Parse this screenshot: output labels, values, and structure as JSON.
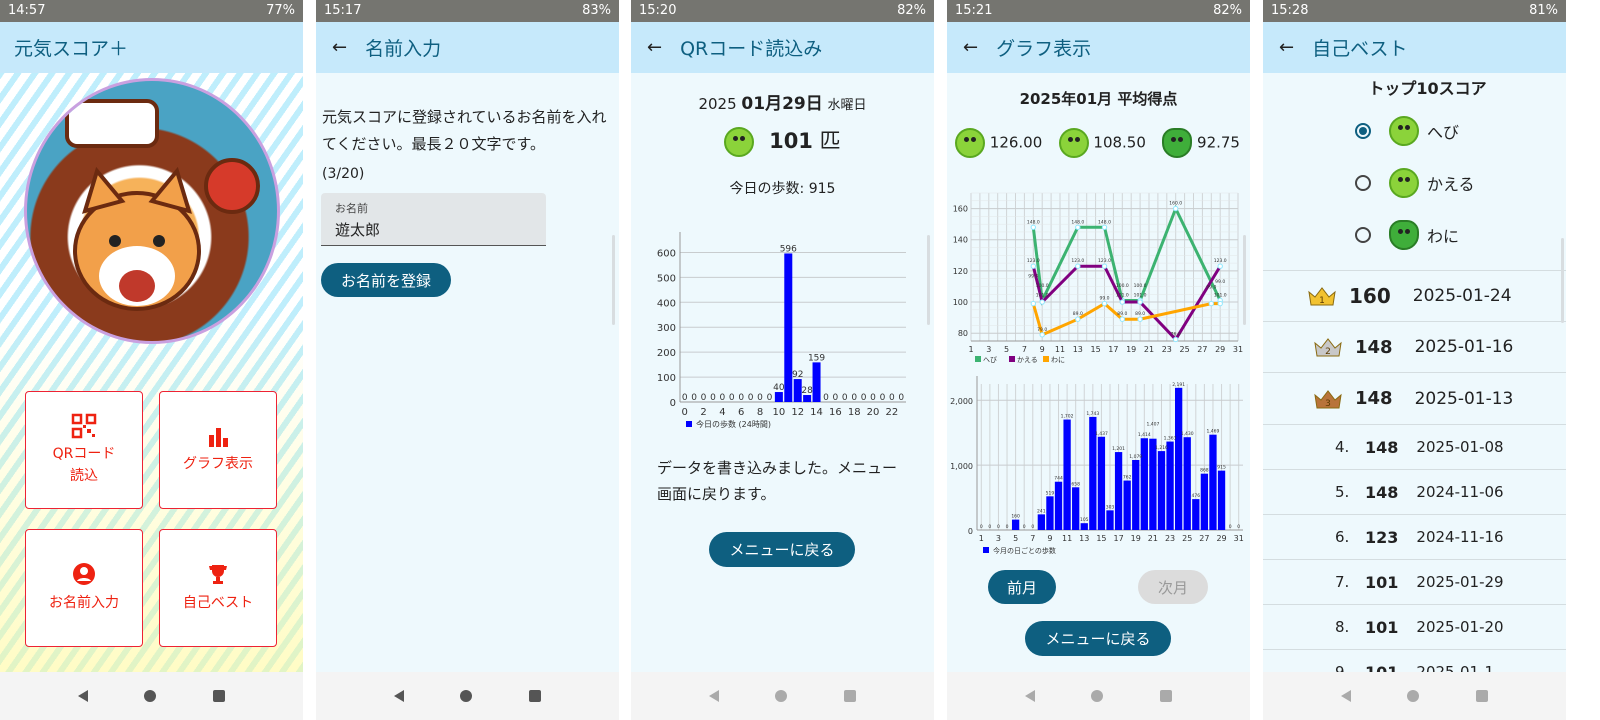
{
  "screens": [
    {
      "status": {
        "time": "14:57",
        "battery": "77%"
      },
      "title": "元気スコア＋",
      "menu": [
        {
          "label": "QRコード\n読込",
          "icon": "qr-code-icon"
        },
        {
          "label": "グラフ表示",
          "icon": "bar-chart-icon"
        },
        {
          "label": "お名前入力",
          "icon": "account-circle-icon"
        },
        {
          "label": "自己ベスト",
          "icon": "trophy-icon"
        }
      ]
    },
    {
      "status": {
        "time": "15:17",
        "battery": "83%"
      },
      "title": "名前入力",
      "instruction": "元気スコアに登録されているお名前を入れてください。最長２０文字です。",
      "counter": "(3/20)",
      "field_label": "お名前",
      "field_value": "遊太郎",
      "register_button": "お名前を登録"
    },
    {
      "status": {
        "time": "15:20",
        "battery": "82%"
      },
      "title": "QRコード読込み",
      "date_year": "2025",
      "date_md": "01月29日",
      "weekday": "水曜日",
      "count": "101",
      "count_unit": "匹",
      "steps_text": "今日の歩数: 915",
      "message": "データを書き込みました。メニュー画面に戻ります。",
      "menu_button": "メニューに戻る"
    },
    {
      "status": {
        "time": "15:21",
        "battery": "82%"
      },
      "title": "グラフ表示",
      "heading": "2025年01月 平均得点",
      "averages": [
        {
          "animal": "へび",
          "score": "126.00"
        },
        {
          "animal": "かえる",
          "score": "108.50"
        },
        {
          "animal": "わに",
          "score": "92.75"
        }
      ],
      "prev_button": "前月",
      "next_button": "次月",
      "menu_button": "メニューに戻る"
    },
    {
      "status": {
        "time": "15:28",
        "battery": "81%"
      },
      "title": "自己ベスト",
      "heading": "トップ10スコア",
      "options": [
        {
          "label": "へび",
          "selected": true
        },
        {
          "label": "かえる",
          "selected": false
        },
        {
          "label": "わに",
          "selected": false
        }
      ],
      "rankings": [
        {
          "rank": "1",
          "score": "160",
          "date": "2025-01-24"
        },
        {
          "rank": "2",
          "score": "148",
          "date": "2025-01-16"
        },
        {
          "rank": "3",
          "score": "148",
          "date": "2025-01-13"
        },
        {
          "rank": "4.",
          "score": "148",
          "date": "2025-01-08"
        },
        {
          "rank": "5.",
          "score": "148",
          "date": "2024-11-06"
        },
        {
          "rank": "6.",
          "score": "123",
          "date": "2024-11-16"
        },
        {
          "rank": "7.",
          "score": "101",
          "date": "2025-01-29"
        },
        {
          "rank": "8.",
          "score": "101",
          "date": "2025-01-20"
        },
        {
          "rank": "9.",
          "score": "101",
          "date": "2025-01-1"
        }
      ]
    }
  ],
  "colors": {
    "accent": "#0e5f80",
    "appbar": "#c6e9fb",
    "menu_red": "#e21111",
    "bar": "#0000ff",
    "hebi": "#3cb371",
    "kaeru": "#800080",
    "wani": "#ffa500"
  },
  "chart_data": [
    {
      "type": "bar",
      "legend": "今日の歩数 (24時間)",
      "categories": [
        0,
        1,
        2,
        3,
        4,
        5,
        6,
        7,
        8,
        9,
        10,
        11,
        12,
        13,
        14,
        15,
        16,
        17,
        18,
        19,
        20,
        21,
        22,
        23
      ],
      "values": [
        0,
        0,
        0,
        0,
        0,
        0,
        0,
        0,
        0,
        0,
        40,
        596,
        92,
        28,
        159,
        0,
        0,
        0,
        0,
        0,
        0,
        0,
        0,
        0
      ],
      "xticks": [
        0,
        2,
        4,
        6,
        8,
        10,
        12,
        14,
        16,
        18,
        20,
        22
      ],
      "yticks": [
        0,
        100,
        200,
        300,
        400,
        500,
        600
      ],
      "ylim": [
        0,
        650
      ],
      "grid": true,
      "legend_position": "bottom-left"
    },
    {
      "type": "line",
      "xticks": [
        1,
        3,
        5,
        7,
        9,
        11,
        13,
        15,
        17,
        19,
        21,
        23,
        25,
        27,
        29,
        31
      ],
      "yticks": [
        80,
        100,
        120,
        140,
        160
      ],
      "xlim": [
        1,
        31
      ],
      "ylim": [
        75,
        170
      ],
      "grid": true,
      "legend_position": "bottom-left",
      "series": [
        {
          "name": "へび",
          "color": "#3cb371",
          "x": [
            8,
            9,
            13,
            16,
            18,
            20,
            24,
            29
          ],
          "y": [
            148,
            101,
            148,
            148,
            101,
            101,
            160,
            101
          ]
        },
        {
          "name": "かえる",
          "color": "#800080",
          "x": [
            8,
            9,
            13,
            16,
            18,
            20,
            24,
            29
          ],
          "y": [
            123,
            100,
            123,
            123,
            100,
            100,
            76,
            123
          ]
        },
        {
          "name": "わに",
          "color": "#ffa500",
          "x": [
            8,
            9,
            13,
            16,
            18,
            20,
            28,
            29
          ],
          "y": [
            99,
            79,
            89,
            99,
            89,
            89,
            99,
            99
          ]
        }
      ]
    },
    {
      "type": "bar",
      "legend": "今月の日ごとの歩数",
      "categories": [
        1,
        2,
        3,
        4,
        5,
        6,
        7,
        8,
        9,
        10,
        11,
        12,
        13,
        14,
        15,
        16,
        17,
        18,
        19,
        20,
        21,
        22,
        23,
        24,
        25,
        26,
        27,
        28,
        29,
        30,
        31
      ],
      "values": [
        0,
        0,
        0,
        0,
        160,
        0,
        0,
        241,
        519,
        744,
        1702,
        658,
        105,
        1743,
        1437,
        303,
        1201,
        762,
        1079,
        1414,
        1407,
        1216,
        1363,
        2191,
        1430,
        476,
        868,
        1469,
        915,
        0,
        0
      ],
      "xticks": [
        1,
        3,
        5,
        7,
        9,
        11,
        13,
        15,
        17,
        19,
        21,
        23,
        25,
        27,
        29,
        31
      ],
      "yticks": [
        0,
        1000,
        2000
      ],
      "ylim": [
        0,
        2250
      ],
      "grid": true,
      "legend_position": "bottom-left"
    }
  ]
}
